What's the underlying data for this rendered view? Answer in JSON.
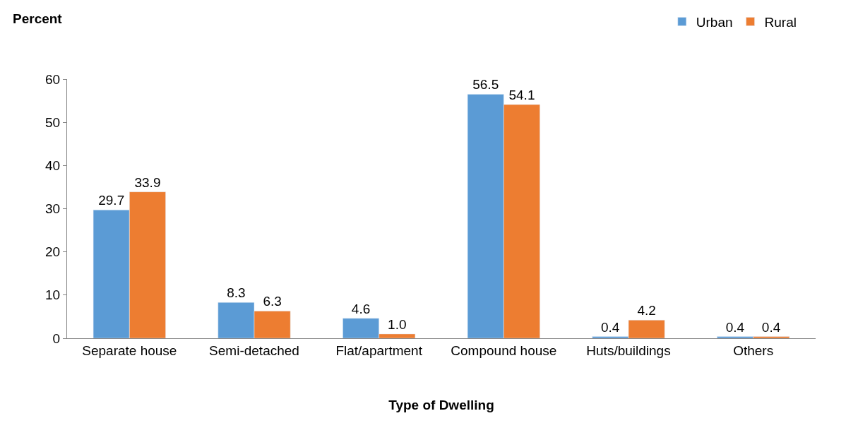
{
  "chart_data": {
    "type": "bar",
    "xlabel": "Type of Dwelling",
    "ylabel": "Percent",
    "categories": [
      "Separate house",
      "Semi-detached",
      "Flat/apartment",
      "Compound house",
      "Huts/buildings",
      "Others"
    ],
    "series": [
      {
        "name": "Urban",
        "color": "#5b9bd5",
        "values": [
          29.7,
          8.3,
          4.6,
          56.5,
          0.4,
          0.4
        ],
        "value_labels": [
          "29.7",
          "8.3",
          "4.6",
          "56.5",
          "0.4",
          "0.4"
        ]
      },
      {
        "name": "Rural",
        "color": "#ed7d31",
        "values": [
          33.9,
          6.3,
          1.0,
          54.1,
          4.2,
          0.4
        ],
        "value_labels": [
          "33.9",
          "6.3",
          "1.0",
          "54.1",
          "4.2",
          "0.4"
        ]
      }
    ],
    "ylim": [
      0,
      60
    ],
    "yticks": [
      0,
      10,
      20,
      30,
      40,
      50,
      60
    ],
    "grid": false,
    "legend": "top right"
  }
}
